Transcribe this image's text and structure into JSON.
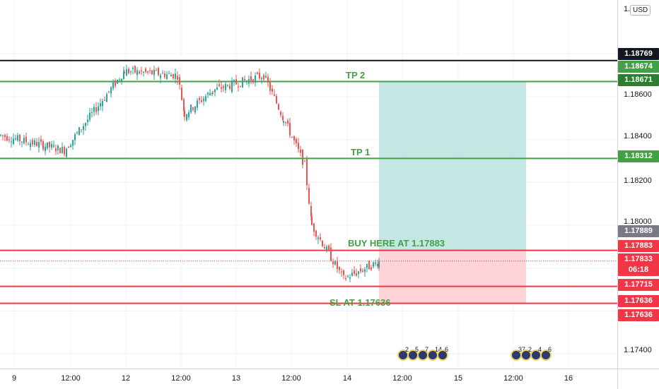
{
  "currency": "USD",
  "price_axis": {
    "ticks": [
      "1.18600",
      "1.18400",
      "1.18200",
      "1.18000",
      "1.17400"
    ],
    "top_partial": "1.1"
  },
  "price_tags": [
    {
      "label": "1.18769",
      "color": "#131722"
    },
    {
      "label": "1.18674",
      "color": "#43a047"
    },
    {
      "label": "1.18671",
      "color": "#2e7d32"
    },
    {
      "label": "1.18312",
      "color": "#43a047"
    },
    {
      "label": "1.17889",
      "color": "#787b86"
    },
    {
      "label": "1.17883",
      "color": "#f23645"
    },
    {
      "label": "1.17833",
      "color": "#f23645"
    },
    {
      "label": "06:18",
      "color": "#f23645"
    },
    {
      "label": "1.17715",
      "color": "#f23645"
    },
    {
      "label": "1.17636",
      "color": "#f23645"
    },
    {
      "label": "1.17636",
      "color": "#f23645"
    }
  ],
  "time_axis": [
    "9",
    "12:00",
    "12",
    "12:00",
    "13",
    "12:00",
    "14",
    "12:00",
    "15",
    "12:00",
    "16"
  ],
  "annotations": {
    "tp2": "TP 2",
    "tp1": "TP 1",
    "buy": "BUY HERE AT 1.17883",
    "sl": "SL AT 1.17636"
  },
  "levels": {
    "black_line": 1.18769,
    "tp2": 1.18671,
    "tp1": 1.18312,
    "entry": 1.17883,
    "level_red_mid": 1.17715,
    "stop_loss": 1.17636,
    "current": 1.17833
  },
  "events": [
    {
      "label": "2",
      "group": 1
    },
    {
      "label": "5",
      "group": 1
    },
    {
      "label": "7",
      "group": 1
    },
    {
      "label": "14",
      "group": 1
    },
    {
      "label": "6",
      "group": 1
    },
    {
      "label": "37",
      "group": 2
    },
    {
      "label": "2",
      "group": 2
    },
    {
      "label": "4",
      "group": 2
    },
    {
      "label": "6",
      "group": 2
    }
  ],
  "colors": {
    "up": "#26a69a",
    "down": "#ef5350",
    "profit_zone": "#b2dfdb",
    "loss_zone": "#ffcdd2",
    "green_line": "#43a047",
    "red_line": "#f23645",
    "black_line": "#131722"
  },
  "chart_data": {
    "type": "candlestick",
    "symbol_quote": "USD",
    "x": [
      "9",
      "12:00",
      "12",
      "12:00",
      "13",
      "12:00",
      "14",
      "12:00",
      "15",
      "12:00",
      "16"
    ],
    "close_path": [
      {
        "x": "9",
        "y": 1.1842
      },
      {
        "x": "9 12:00",
        "y": 1.1835
      },
      {
        "x": "12",
        "y": 1.1872
      },
      {
        "x": "12 12:00",
        "y": 1.187
      },
      {
        "x": "12 18:00",
        "y": 1.1852
      },
      {
        "x": "13",
        "y": 1.1863
      },
      {
        "x": "13 08:00",
        "y": 1.187
      },
      {
        "x": "13 12:00",
        "y": 1.185
      },
      {
        "x": "13 16:00",
        "y": 1.1828
      },
      {
        "x": "13 18:00",
        "y": 1.18
      },
      {
        "x": "14",
        "y": 1.1775
      },
      {
        "x": "14 06:00",
        "y": 1.1783
      }
    ],
    "ylim": [
      1.1735,
      1.19
    ],
    "ylabel": "",
    "xlabel": ""
  }
}
